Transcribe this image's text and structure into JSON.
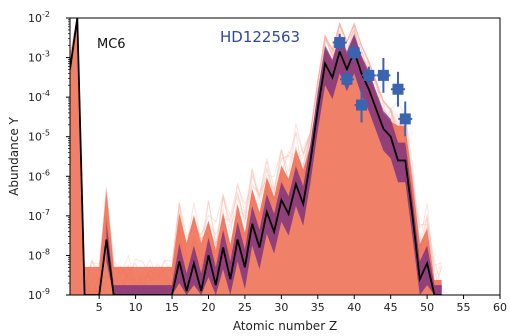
{
  "chart_data": {
    "type": "line",
    "xlabel": "Atomic number Z",
    "ylabel": "Abundance Y",
    "xlim": [
      1,
      60
    ],
    "ylim_exp": [
      -9,
      -2
    ],
    "y_scale": "log",
    "grid": false,
    "x_ticks": [
      5,
      10,
      15,
      20,
      25,
      30,
      35,
      40,
      45,
      50,
      55,
      60
    ],
    "y_ticks": [
      {
        "base": "10",
        "exp": "-9"
      },
      {
        "base": "10",
        "exp": "-8"
      },
      {
        "base": "10",
        "exp": "-7"
      },
      {
        "base": "10",
        "exp": "-6"
      },
      {
        "base": "10",
        "exp": "-5"
      },
      {
        "base": "10",
        "exp": "-4"
      },
      {
        "base": "10",
        "exp": "-3"
      },
      {
        "base": "10",
        "exp": "-2"
      }
    ],
    "annotations": [
      {
        "text": "MC6",
        "color": "#111111"
      },
      {
        "text": "HD122563",
        "color": "#2f4a9c"
      }
    ],
    "colors": {
      "ensemble": "#ef6a4e",
      "ensemble_light": "#f7b3a2",
      "band": "#7a2f7e",
      "median": "#000000",
      "observed": "#3a64b0"
    },
    "median_series": {
      "x": [
        1,
        2,
        3,
        4,
        5,
        6,
        7,
        8,
        9,
        10,
        11,
        12,
        13,
        14,
        15,
        16,
        17,
        18,
        19,
        20,
        21,
        22,
        23,
        24,
        25,
        26,
        27,
        28,
        29,
        30,
        31,
        32,
        33,
        34,
        35,
        36,
        37,
        38,
        39,
        40,
        41,
        42,
        43,
        44,
        45,
        46,
        47,
        48,
        49,
        50,
        51,
        52
      ],
      "log_y": [
        -3.3,
        -2.0,
        -9.0,
        -9.0,
        -9.0,
        -7.6,
        -9.0,
        -9.0,
        -9.0,
        -9.0,
        -9.0,
        -9.0,
        -9.0,
        -9.0,
        -9.0,
        -8.15,
        -8.9,
        -8.2,
        -8.9,
        -8.0,
        -8.75,
        -7.8,
        -8.6,
        -7.6,
        -8.3,
        -7.2,
        -7.8,
        -6.9,
        -7.4,
        -6.6,
        -6.95,
        -6.2,
        -6.7,
        -5.6,
        -4.3,
        -3.15,
        -3.5,
        -2.85,
        -3.3,
        -2.85,
        -3.4,
        -3.8,
        -4.3,
        -4.8,
        -5.0,
        -5.6,
        -5.6,
        -7.0,
        -8.6,
        -8.2,
        -9.0,
        -9.0
      ]
    },
    "observed_points": [
      {
        "z": 38,
        "log_y": -2.62,
        "err": 0.1
      },
      {
        "z": 39,
        "log_y": -3.55,
        "err": 0.1
      },
      {
        "z": 40,
        "log_y": -2.88,
        "err": 0.1
      },
      {
        "z": 41,
        "log_y": -4.2,
        "err": 0.2
      },
      {
        "z": 42,
        "log_y": -3.45,
        "err": 0.1
      },
      {
        "z": 44,
        "log_y": -3.45,
        "err": 0.2
      },
      {
        "z": 46,
        "log_y": -3.8,
        "err": 0.2
      },
      {
        "z": 47,
        "log_y": -4.55,
        "err": 0.2
      }
    ]
  }
}
